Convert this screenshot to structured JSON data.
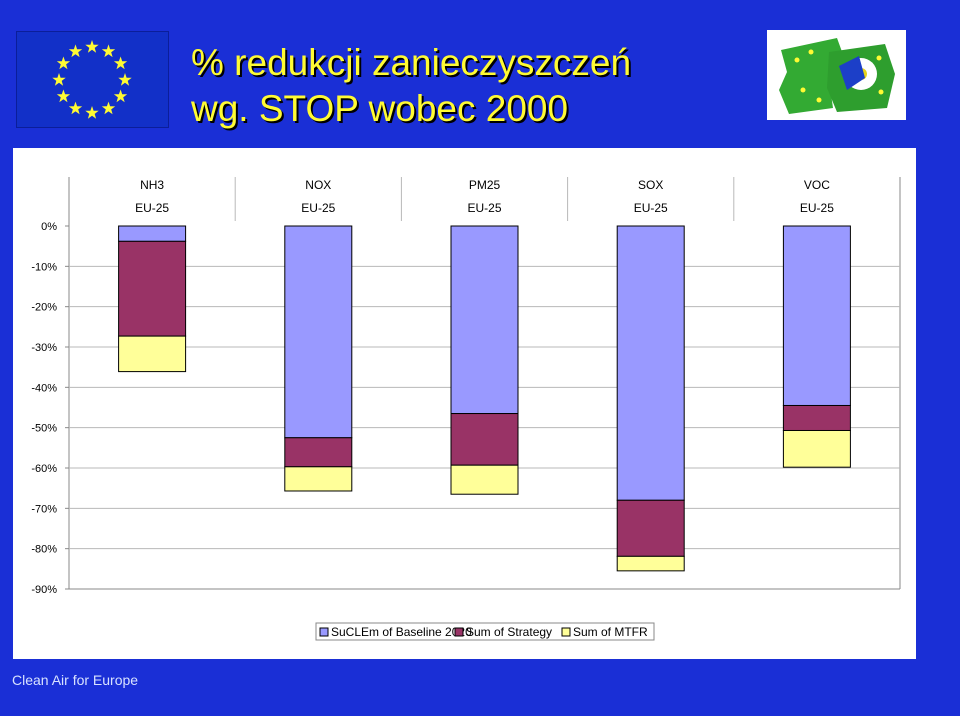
{
  "header": {
    "title_line1": "% redukcji zanieczyszczeń",
    "title_line2": "wg. STOP wobec 2000"
  },
  "footer": {
    "text": "Clean Air for Europe"
  },
  "colors": {
    "background": "#1a2fd6",
    "title": "#fffb33",
    "baseline": "#9999ff",
    "strategy": "#993366",
    "mtfr": "#ffff99"
  },
  "chart_data": {
    "type": "bar",
    "stacked": true,
    "categories": [
      "NH3",
      "NOX",
      "PM25",
      "SOX",
      "VOC"
    ],
    "sub_labels": [
      "EU-25",
      "EU-25",
      "EU-25",
      "EU-25",
      "EU-25"
    ],
    "series": [
      {
        "name": "SuCLEm of Baseline 2020",
        "values": [
          -3.8,
          -52.5,
          -46.5,
          -68.0,
          -44.5
        ]
      },
      {
        "name": "Sum of Strategy",
        "values": [
          -23.5,
          -7.2,
          -12.8,
          -13.9,
          -6.2
        ]
      },
      {
        "name": "Sum of MTFR",
        "values": [
          -8.8,
          -6.0,
          -7.2,
          -3.6,
          -9.1
        ]
      }
    ],
    "ylim": [
      -90,
      0
    ],
    "yticks": [
      0,
      -10,
      -20,
      -30,
      -40,
      -50,
      -60,
      -70,
      -80,
      -90
    ],
    "ytick_labels": [
      "0%",
      "-10%",
      "-20%",
      "-30%",
      "-40%",
      "-50%",
      "-60%",
      "-70%",
      "-80%",
      "-90%"
    ],
    "grid": true,
    "legend_position": "bottom-right"
  }
}
